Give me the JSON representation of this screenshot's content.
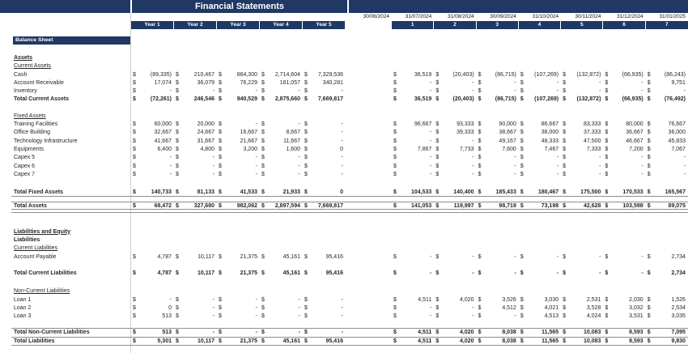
{
  "title": "Financial Statements",
  "sheet_label": "Balance Sheet",
  "colors": {
    "navy": "#1f3864",
    "line": "#8f8f8f",
    "divider": "#cfcfcf"
  },
  "header": {
    "year_columns": [
      "Year 1",
      "Year 2",
      "Year 3",
      "Year 4",
      "Year 5"
    ],
    "dates": [
      "30/06/2024",
      "31/07/2024",
      "31/08/2024",
      "30/09/2024",
      "31/10/2024",
      "30/11/2024",
      "31/12/2024",
      "31/01/2025"
    ],
    "month_numbers": [
      "1",
      "2",
      "3",
      "4",
      "5",
      "6",
      "7"
    ]
  },
  "rows": [
    {
      "type": "section",
      "style": "bold underline",
      "label": "Assets"
    },
    {
      "type": "section",
      "style": "underline",
      "label": "Current Assets"
    },
    {
      "type": "item",
      "label": "Cash",
      "years": [
        "(89,335)",
        "210,467",
        "864,300",
        "2,714,604",
        "7,329,536"
      ],
      "months": [
        "36,519",
        "(20,403)",
        "(86,715)",
        "(107,269)",
        "(132,872)",
        "(66,935)",
        "(86,243)"
      ]
    },
    {
      "type": "item",
      "label": "Account Receivable",
      "years": [
        "17,074",
        "36,079",
        "76,229",
        "161,057",
        "340,281"
      ],
      "months": [
        "-",
        "-",
        "-",
        "-",
        "-",
        "-",
        "9,751"
      ]
    },
    {
      "type": "item",
      "label": "Inventory",
      "years": [
        "-",
        "-",
        "-",
        "-",
        "-"
      ],
      "months": [
        "-",
        "-",
        "-",
        "-",
        "-",
        "-",
        "-"
      ]
    },
    {
      "type": "total",
      "label": "Total Current Assets",
      "years": [
        "(72,261)",
        "246,546",
        "940,529",
        "2,875,660",
        "7,669,817"
      ],
      "months": [
        "36,519",
        "(20,403)",
        "(86,715)",
        "(107,269)",
        "(132,872)",
        "(66,935)",
        "(76,492)"
      ]
    },
    {
      "type": "blank",
      "h": 10
    },
    {
      "type": "section",
      "style": "underline",
      "label": "Fixed Assets"
    },
    {
      "type": "item",
      "label": "Training Facilities",
      "years": [
        "60,000",
        "20,000",
        "-",
        "-",
        "-"
      ],
      "months": [
        "96,667",
        "93,333",
        "90,000",
        "86,667",
        "83,333",
        "80,000",
        "76,667"
      ]
    },
    {
      "type": "item",
      "label": "Office Building",
      "years": [
        "32,667",
        "24,667",
        "16,667",
        "8,667",
        "-"
      ],
      "months": [
        "-",
        "39,333",
        "38,667",
        "38,000",
        "37,333",
        "36,667",
        "36,000"
      ]
    },
    {
      "type": "item",
      "label": "Technology Infrastructure",
      "years": [
        "41,667",
        "31,667",
        "21,667",
        "11,667",
        "-"
      ],
      "months": [
        "-",
        "-",
        "49,167",
        "48,333",
        "47,500",
        "46,667",
        "45,833"
      ]
    },
    {
      "type": "item",
      "label": "Equipments",
      "years": [
        "6,400",
        "4,800",
        "3,200",
        "1,600",
        "0"
      ],
      "months": [
        "7,867",
        "7,733",
        "7,600",
        "7,467",
        "7,333",
        "7,200",
        "7,067"
      ]
    },
    {
      "type": "item",
      "label": "Capex 5",
      "years": [
        "-",
        "-",
        "-",
        "-",
        "-"
      ],
      "months": [
        "-",
        "-",
        "-",
        "-",
        "-",
        "-",
        "-"
      ]
    },
    {
      "type": "item",
      "label": "Capex 6",
      "years": [
        "-",
        "-",
        "-",
        "-",
        "-"
      ],
      "months": [
        "-",
        "-",
        "-",
        "-",
        "-",
        "-",
        "-"
      ]
    },
    {
      "type": "item",
      "label": "Capex 7",
      "years": [
        "-",
        "-",
        "-",
        "-",
        "-"
      ],
      "months": [
        "-",
        "-",
        "-",
        "-",
        "-",
        "-",
        "-"
      ]
    },
    {
      "type": "blank",
      "h": 12
    },
    {
      "type": "total",
      "label": "Total Fixed Assets",
      "border": "bottom",
      "years": [
        "140,733",
        "81,133",
        "41,533",
        "21,933",
        "0"
      ],
      "months": [
        "104,533",
        "140,400",
        "185,433",
        "180,467",
        "175,500",
        "170,533",
        "165,567"
      ]
    },
    {
      "type": "blank",
      "h": 7
    },
    {
      "type": "total",
      "label": "Total Assets",
      "border": "grand",
      "years": [
        "68,472",
        "327,680",
        "982,062",
        "2,897,594",
        "7,669,817"
      ],
      "months": [
        "141,053",
        "119,997",
        "98,718",
        "73,198",
        "42,628",
        "103,598",
        "89,075"
      ]
    },
    {
      "type": "blank",
      "h": 21
    },
    {
      "type": "section",
      "style": "bold underline",
      "label": "Liabilities and Equity"
    },
    {
      "type": "section",
      "style": "bold",
      "label": "Liabilities"
    },
    {
      "type": "section",
      "style": "underline",
      "label": "Current Liabilities"
    },
    {
      "type": "item",
      "label": "Account Payable",
      "years": [
        "4,787",
        "10,117",
        "21,375",
        "45,161",
        "95,416"
      ],
      "months": [
        "-",
        "-",
        "-",
        "-",
        "-",
        "-",
        "2,734"
      ]
    },
    {
      "type": "blank",
      "h": 10
    },
    {
      "type": "total",
      "label": "Total Current Liabilities",
      "years": [
        "4,787",
        "10,117",
        "21,375",
        "45,161",
        "95,416"
      ],
      "months": [
        "-",
        "-",
        "-",
        "-",
        "-",
        "-",
        "2,734"
      ]
    },
    {
      "type": "blank",
      "h": 12
    },
    {
      "type": "section",
      "style": "underline",
      "label": "Non-Current Liabilities"
    },
    {
      "type": "item",
      "label": "Loan 1",
      "years": [
        "-",
        "-",
        "-",
        "-",
        "-"
      ],
      "months": [
        "4,511",
        "4,020",
        "3,526",
        "3,030",
        "2,531",
        "2,030",
        "1,526"
      ]
    },
    {
      "type": "item",
      "label": "Loan 2",
      "years": [
        "0",
        "-",
        "-",
        "-",
        "-"
      ],
      "months": [
        "-",
        "-",
        "4,512",
        "4,021",
        "3,528",
        "3,032",
        "2,534"
      ]
    },
    {
      "type": "item",
      "label": "Loan 3",
      "years": [
        "513",
        "-",
        "-",
        "-",
        "-"
      ],
      "months": [
        "-",
        "-",
        "-",
        "4,513",
        "4,024",
        "3,531",
        "3,035"
      ]
    },
    {
      "type": "blank",
      "h": 10
    },
    {
      "type": "total",
      "label": "Total Non-Current Liabilities",
      "border": "box",
      "years": [
        "513",
        "-",
        "-",
        "-",
        "-"
      ],
      "months": [
        "4,511",
        "4,020",
        "8,038",
        "11,565",
        "10,083",
        "8,593",
        "7,095"
      ]
    },
    {
      "type": "total",
      "label": "Total Liabilities",
      "border": "bottom",
      "years": [
        "5,301",
        "10,117",
        "21,375",
        "45,161",
        "95,416"
      ],
      "months": [
        "4,511",
        "4,020",
        "8,038",
        "11,565",
        "10,083",
        "8,593",
        "9,830"
      ]
    }
  ]
}
